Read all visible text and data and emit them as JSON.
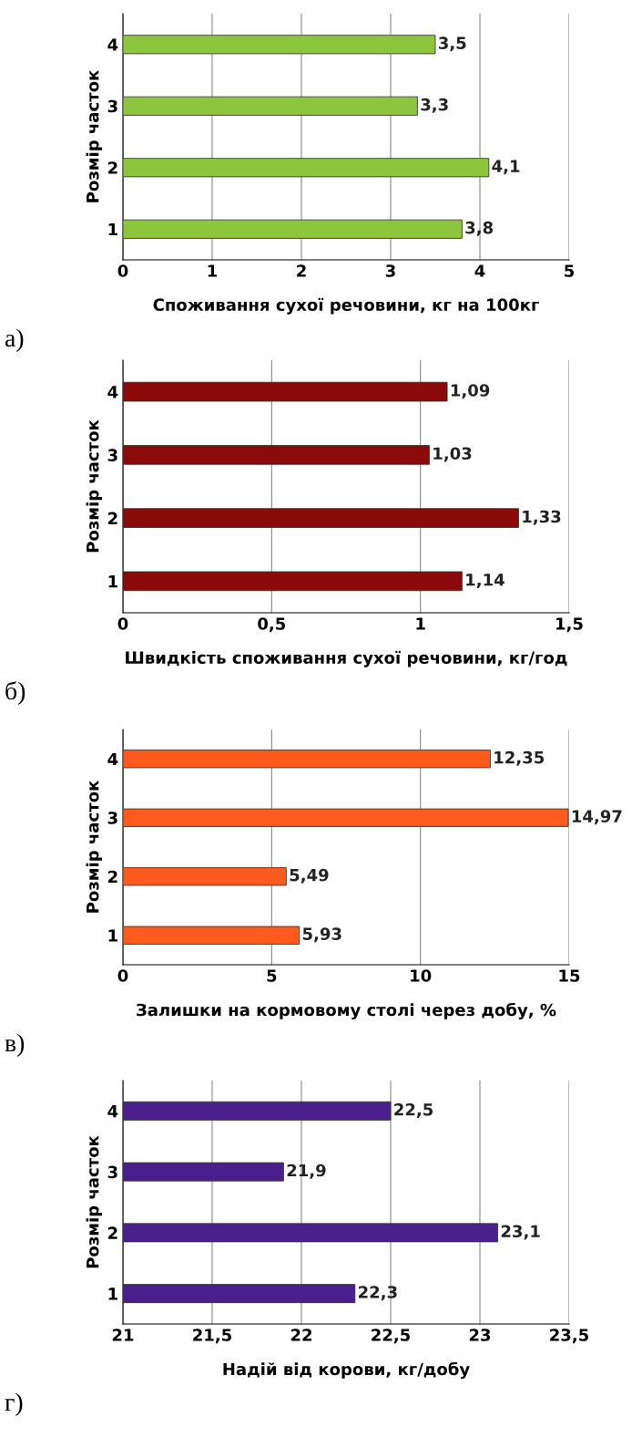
{
  "chart_data": [
    {
      "type": "bar",
      "orientation": "horizontal",
      "ylabel": "Розмір часток",
      "xlabel": "Споживання сухої речовини, кг на 100кг",
      "annotations": [
        "а)"
      ],
      "categories": [
        "4",
        "3",
        "2",
        "1"
      ],
      "values": [
        3.5,
        3.3,
        4.1,
        3.8
      ],
      "value_labels": [
        "3,5",
        "3,3",
        "4,1",
        "3,8"
      ],
      "color": "#8cc63e",
      "xlim": [
        0,
        5
      ],
      "xticks": [
        0,
        1,
        2,
        3,
        4,
        5
      ],
      "grid": "x"
    },
    {
      "type": "bar",
      "orientation": "horizontal",
      "ylabel": "Розмір часток",
      "xlabel": "Швидкість споживання сухої речовини, кг/год",
      "annotations": [
        "б)"
      ],
      "categories": [
        "4",
        "3",
        "2",
        "1"
      ],
      "values": [
        1.09,
        1.03,
        1.33,
        1.14
      ],
      "value_labels": [
        "1,09",
        "1,03",
        "1,33",
        "1,14"
      ],
      "color": "#8b0a0a",
      "xlim": [
        0,
        1.5
      ],
      "xticks": [
        0,
        {
          "value": 0.5,
          "label": "0,5"
        },
        1,
        {
          "value": 1.5,
          "label": "1,5"
        }
      ],
      "grid": "x"
    },
    {
      "type": "bar",
      "orientation": "horizontal",
      "ylabel": "Розмір часток",
      "xlabel": "Залишки на кормовому столі через добу, %",
      "annotations": [
        "в)"
      ],
      "categories": [
        "4",
        "3",
        "2",
        "1"
      ],
      "values": [
        12.35,
        14.97,
        5.49,
        5.93
      ],
      "value_labels": [
        "12,35",
        "14,97",
        "5,49",
        "5,93"
      ],
      "color": "#ff5a1e",
      "xlim": [
        0,
        15
      ],
      "xticks": [
        0,
        5,
        10,
        15
      ],
      "grid": "x"
    },
    {
      "type": "bar",
      "orientation": "horizontal",
      "ylabel": "Розмір часток",
      "xlabel": "Надій від корови, кг/добу",
      "annotations": [
        "г)"
      ],
      "categories": [
        "4",
        "3",
        "2",
        "1"
      ],
      "values": [
        22.5,
        21.9,
        23.1,
        22.3
      ],
      "value_labels": [
        "22,5",
        "21,9",
        "23,1",
        "22,3"
      ],
      "color": "#4a1f8c",
      "xlim": [
        21,
        23.5
      ],
      "xticks": [
        21,
        {
          "value": 21.5,
          "label": "21,5"
        },
        22,
        {
          "value": 22.5,
          "label": "22,5"
        },
        23,
        {
          "value": 23.5,
          "label": "23,5"
        }
      ],
      "grid": "x"
    }
  ]
}
